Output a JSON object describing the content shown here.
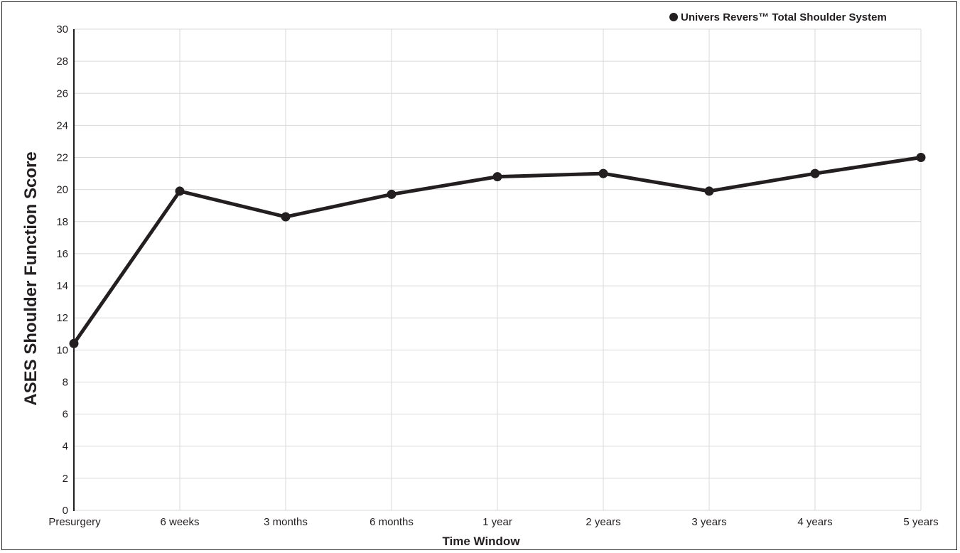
{
  "chart_data": {
    "type": "line",
    "xlabel": "Time Window",
    "ylabel": "ASES Shoulder Function Score",
    "categories": [
      "Presurgery",
      "6 weeks",
      "3 months",
      "6 months",
      "1 year",
      "2 years",
      "3 years",
      "4 years",
      "5 years"
    ],
    "ylim": [
      0,
      30
    ],
    "yticks": [
      0,
      2,
      4,
      6,
      8,
      10,
      12,
      14,
      16,
      18,
      20,
      22,
      24,
      26,
      28,
      30
    ],
    "grid": true,
    "legend_position": "top-right",
    "series": [
      {
        "name": "Univers Revers™ Total Shoulder System",
        "values": [
          10.4,
          19.9,
          18.3,
          19.7,
          20.8,
          21.0,
          19.9,
          21.0,
          22.0
        ],
        "color": "#231f20"
      }
    ]
  }
}
